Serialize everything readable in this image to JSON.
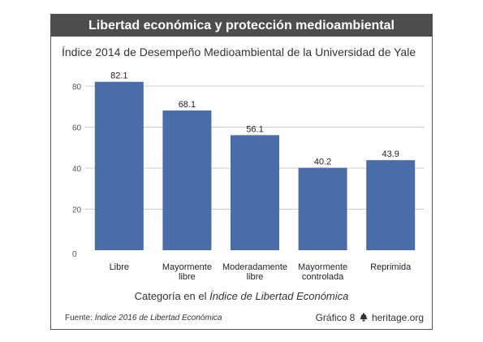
{
  "header": {
    "title": "Libertad económica y protección medioambiental"
  },
  "footer": {
    "source_prefix": "Fuente: ",
    "source_title": "Índice 2016 de Libertad Económica",
    "chart_number": "Gráfico 8",
    "website": "heritage.org"
  },
  "chart_data": {
    "type": "bar",
    "title": "Índice 2014 de Desempeño Medioambiental de la Universidad de Yale",
    "categories": [
      [
        "Libre"
      ],
      [
        "Mayormente",
        "libre"
      ],
      [
        "Moderadamente",
        "libre"
      ],
      [
        "Mayormente",
        "controlada"
      ],
      [
        "Reprimida"
      ]
    ],
    "values": [
      82.1,
      68.1,
      56.1,
      40.2,
      43.9
    ],
    "value_labels": [
      "82.1",
      "68.1",
      "56.1",
      "40.2",
      "43.9"
    ],
    "xlabel_prefix": "Categoría en el ",
    "xlabel_italic": "Índice de Libertad Económica",
    "ylabel": "",
    "ylim": [
      0,
      80
    ],
    "yticks": [
      0,
      20,
      40,
      60,
      80
    ],
    "grid": true,
    "bar_color": "#4a6ca8",
    "grid_color": "#cccccc"
  }
}
